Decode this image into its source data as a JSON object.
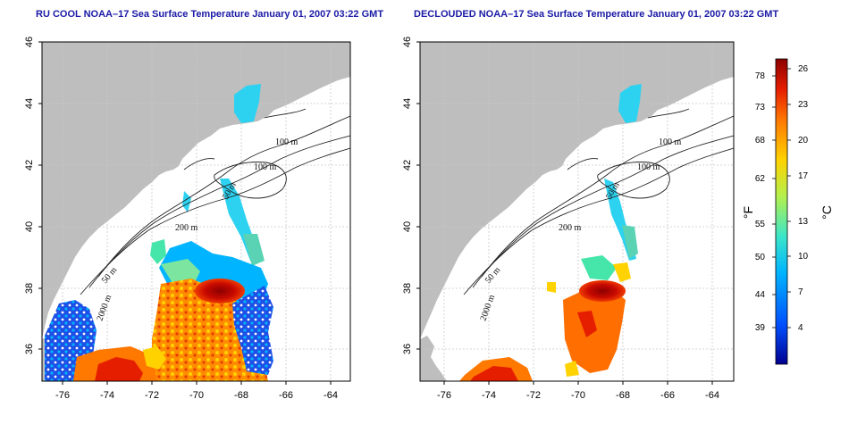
{
  "panels": [
    {
      "title": "RU COOL NOAA–17 Sea Surface Temperature January 01, 2007 03:22 GMT",
      "x_ticks": [
        "-76",
        "-74",
        "-72",
        "-70",
        "-68",
        "-66",
        "-64"
      ],
      "y_ticks": [
        "36",
        "38",
        "40",
        "42",
        "44",
        "46"
      ],
      "contour_labels": [
        "100 m",
        "100 m",
        "50 m",
        "200 m",
        "50 m",
        "2000 m"
      ]
    },
    {
      "title": "DECLOUDED NOAA–17 Sea Surface Temperature January 01, 2007 03:22 GMT",
      "x_ticks": [
        "-76",
        "-74",
        "-72",
        "-70",
        "-68",
        "-66",
        "-64"
      ],
      "y_ticks": [
        "36",
        "38",
        "40",
        "42",
        "44",
        "46"
      ],
      "contour_labels": [
        "100 m",
        "100 m",
        "50 m",
        "200 m",
        "50 m",
        "2000 m"
      ]
    }
  ],
  "colorbar": {
    "f_label": "°F",
    "c_label": "°C",
    "f_ticks": [
      "78",
      "73",
      "68",
      "62",
      "55",
      "50",
      "44",
      "39"
    ],
    "c_ticks": [
      "26",
      "23",
      "20",
      "17",
      "13",
      "10",
      "7",
      "4"
    ],
    "colors": [
      "#00008f",
      "#0050ff",
      "#00b4ff",
      "#3ce6c8",
      "#b4f04c",
      "#ffd200",
      "#ff7800",
      "#e61e00",
      "#8c0000"
    ]
  },
  "colors": {
    "land": "#bebebe",
    "ocean": "#ffffff",
    "title": "#1a1aa6",
    "grid": "#c8c8c8"
  }
}
